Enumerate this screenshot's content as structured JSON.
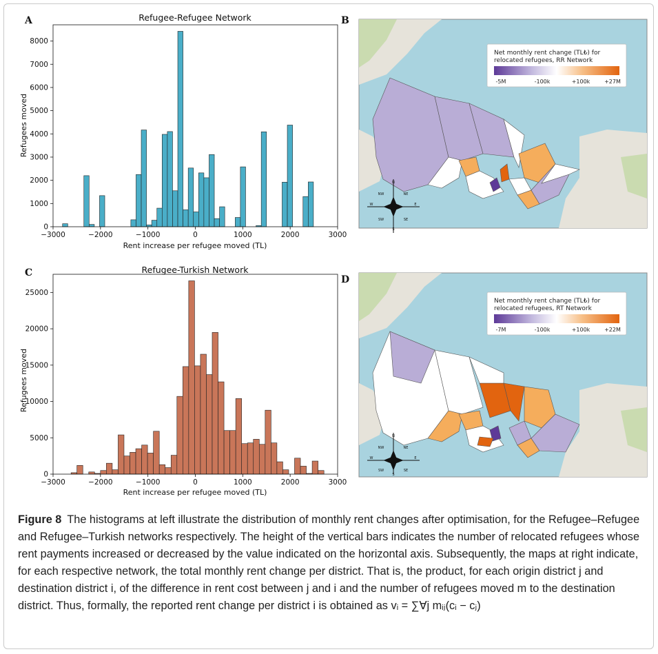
{
  "panels": {
    "A": {
      "letter": "A",
      "chart_data": {
        "type": "bar",
        "title": "Refugee-Refugee Network",
        "xlabel": "Rent increase per refugee moved (TL)",
        "ylabel": "Refugees moved",
        "color": "#4aaec8",
        "xlim": [
          -3000,
          3000
        ],
        "ylim": [
          0,
          8700
        ],
        "xticks": [
          -3000,
          -2000,
          -1000,
          0,
          1000,
          2000,
          3000
        ],
        "xtick_labels": [
          "−3000",
          "−2000",
          "−1000",
          "0",
          "1000",
          "2000",
          "3000"
        ],
        "yticks": [
          0,
          1000,
          2000,
          3000,
          4000,
          5000,
          6000,
          7000,
          8000
        ],
        "bin_width": 110,
        "bins": [
          {
            "x": -2800,
            "y": 130
          },
          {
            "x": -2350,
            "y": 2200
          },
          {
            "x": -2240,
            "y": 100
          },
          {
            "x": -2020,
            "y": 1340
          },
          {
            "x": -1360,
            "y": 300
          },
          {
            "x": -1250,
            "y": 2250
          },
          {
            "x": -1140,
            "y": 4170
          },
          {
            "x": -1030,
            "y": 80
          },
          {
            "x": -920,
            "y": 280
          },
          {
            "x": -810,
            "y": 800
          },
          {
            "x": -700,
            "y": 3980
          },
          {
            "x": -590,
            "y": 4100
          },
          {
            "x": -480,
            "y": 1550
          },
          {
            "x": -370,
            "y": 8420
          },
          {
            "x": -260,
            "y": 730
          },
          {
            "x": -150,
            "y": 2530
          },
          {
            "x": -40,
            "y": 640
          },
          {
            "x": 70,
            "y": 2320
          },
          {
            "x": 180,
            "y": 2110
          },
          {
            "x": 290,
            "y": 3110
          },
          {
            "x": 400,
            "y": 350
          },
          {
            "x": 510,
            "y": 860
          },
          {
            "x": 840,
            "y": 400
          },
          {
            "x": 950,
            "y": 2580
          },
          {
            "x": 1280,
            "y": 50
          },
          {
            "x": 1390,
            "y": 4090
          },
          {
            "x": 1830,
            "y": 1920
          },
          {
            "x": 1940,
            "y": 4380
          },
          {
            "x": 2270,
            "y": 1300
          },
          {
            "x": 2380,
            "y": 1930
          }
        ]
      }
    },
    "C": {
      "letter": "C",
      "chart_data": {
        "type": "bar",
        "title": "Refugee-Turkish Network",
        "xlabel": "Rent increase per refugee moved (TL)",
        "ylabel": "Refugees moved",
        "color": "#c97659",
        "xlim": [
          -3000,
          3000
        ],
        "ylim": [
          0,
          27500
        ],
        "xticks": [
          -3000,
          -2000,
          -1000,
          0,
          1000,
          2000,
          3000
        ],
        "xtick_labels": [
          "−3000",
          "−2000",
          "−1000",
          "0",
          "1000",
          "2000",
          "3000"
        ],
        "yticks": [
          0,
          5000,
          10000,
          15000,
          20000,
          25000
        ],
        "bin_width": 124,
        "bins": [
          {
            "x": -2620,
            "y": 200
          },
          {
            "x": -2496,
            "y": 1200
          },
          {
            "x": -2248,
            "y": 300
          },
          {
            "x": -2124,
            "y": 100
          },
          {
            "x": -2000,
            "y": 500
          },
          {
            "x": -1876,
            "y": 1500
          },
          {
            "x": -1752,
            "y": 600
          },
          {
            "x": -1628,
            "y": 5400
          },
          {
            "x": -1504,
            "y": 2500
          },
          {
            "x": -1380,
            "y": 3000
          },
          {
            "x": -1256,
            "y": 3500
          },
          {
            "x": -1132,
            "y": 4000
          },
          {
            "x": -1008,
            "y": 2900
          },
          {
            "x": -884,
            "y": 5900
          },
          {
            "x": -760,
            "y": 1300
          },
          {
            "x": -636,
            "y": 900
          },
          {
            "x": -512,
            "y": 2600
          },
          {
            "x": -388,
            "y": 10700
          },
          {
            "x": -264,
            "y": 14800
          },
          {
            "x": -140,
            "y": 26600
          },
          {
            "x": -16,
            "y": 14900
          },
          {
            "x": 108,
            "y": 16500
          },
          {
            "x": 232,
            "y": 13700
          },
          {
            "x": 356,
            "y": 19500
          },
          {
            "x": 480,
            "y": 12700
          },
          {
            "x": 604,
            "y": 6000
          },
          {
            "x": 728,
            "y": 6000
          },
          {
            "x": 852,
            "y": 10400
          },
          {
            "x": 976,
            "y": 4200
          },
          {
            "x": 1100,
            "y": 4300
          },
          {
            "x": 1224,
            "y": 4800
          },
          {
            "x": 1348,
            "y": 4100
          },
          {
            "x": 1472,
            "y": 8800
          },
          {
            "x": 1596,
            "y": 4300
          },
          {
            "x": 1720,
            "y": 1700
          },
          {
            "x": 1844,
            "y": 600
          },
          {
            "x": 2092,
            "y": 2200
          },
          {
            "x": 2216,
            "y": 1100
          },
          {
            "x": 2340,
            "y": 100
          },
          {
            "x": 2464,
            "y": 1800
          },
          {
            "x": 2588,
            "y": 500
          }
        ]
      }
    },
    "B": {
      "letter": "B",
      "legend": {
        "title_line1": "Net monthly rent change (TL₺) for",
        "title_line2": "relocated refugees, RR Network",
        "ticks": [
          "-5M",
          "-100k",
          "+100k",
          "+27M"
        ]
      },
      "compass": {
        "n": "N",
        "s": "S",
        "e": "E",
        "w": "W",
        "nw": "NW",
        "ne": "NE",
        "sw": "SW",
        "se": "SE"
      }
    },
    "D": {
      "letter": "D",
      "legend": {
        "title_line1": "Net monthly rent change (TL₺) for",
        "title_line2": "relocated refugees, RT Network",
        "ticks": [
          "-7M",
          "-100k",
          "+100k",
          "+22M"
        ]
      },
      "compass": {
        "n": "N",
        "s": "S",
        "e": "E",
        "w": "W",
        "nw": "NW",
        "ne": "NE",
        "sw": "SW",
        "se": "SE"
      }
    }
  },
  "colors": {
    "sea": "#a9d3df",
    "land": "#e9e5dc",
    "forest": "#c9dcae",
    "purple_light": "#b9add6",
    "purple_dark": "#5e3a98",
    "orange_light": "#f5ad5c",
    "orange_dark": "#e2640f",
    "neutral": "#ffffff"
  },
  "caption": {
    "label": "Figure 8",
    "text": "The histograms at left illustrate the distribution of monthly rent changes after optimisation, for the Refugee–Refugee and Refugee–Turkish networks respectively. The height of the vertical bars indicates the number of relocated refugees whose rent payments increased or decreased by the value indicated on the horizontal axis. Subsequently, the maps at right indicate, for each respective network, the total monthly rent change per district. That is, the product, for each origin district j and destination district i, of the difference in rent cost between j and i and the number of refugees moved m to the destination district. Thus, formally, the reported rent change per district i is obtained as vᵢ = ∑∀j mᵢⱼ(cᵢ − cⱼ)"
  }
}
